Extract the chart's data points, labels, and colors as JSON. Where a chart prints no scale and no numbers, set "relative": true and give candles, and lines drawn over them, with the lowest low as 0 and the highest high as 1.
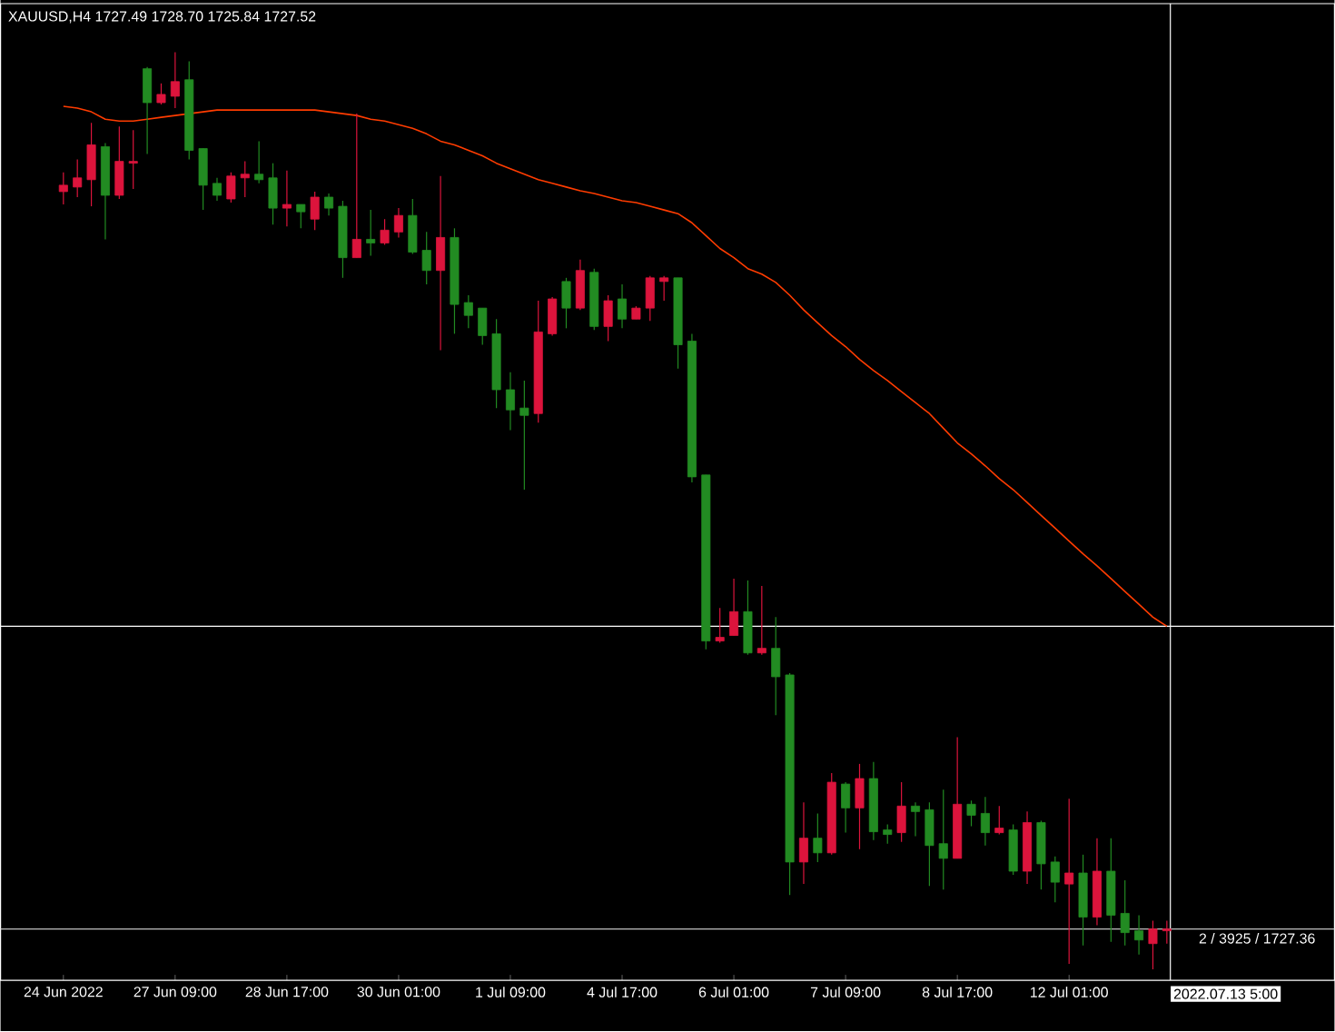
{
  "chart_data": {
    "type": "candlestick",
    "relative": true,
    "tick_labels": "x",
    "title": "XAUUSD,H4  1727.49 1728.70 1725.84 1727.52",
    "categories": [
      "24 Jun 2022",
      null,
      null,
      null,
      null,
      null,
      null,
      null,
      "27 Jun 09:00",
      null,
      null,
      null,
      null,
      null,
      null,
      null,
      "28 Jun 17:00",
      null,
      null,
      null,
      null,
      null,
      null,
      null,
      "30 Jun 01:00",
      null,
      null,
      null,
      null,
      null,
      null,
      null,
      "1 Jul 09:00",
      null,
      null,
      null,
      null,
      null,
      null,
      null,
      "4 Jul 17:00",
      null,
      null,
      null,
      null,
      null,
      null,
      null,
      "6 Jul 01:00",
      null,
      null,
      null,
      null,
      null,
      null,
      null,
      "7 Jul 09:00",
      null,
      null,
      null,
      null,
      null,
      null,
      null,
      "8 Jul 17:00",
      null,
      null,
      null,
      null,
      null,
      null,
      null,
      "12 Jul 01:00",
      null,
      null,
      null,
      null,
      null,
      null,
      null
    ],
    "ohlc": [
      [
        0.848,
        0.869,
        0.834,
        0.855
      ],
      [
        0.853,
        0.883,
        0.842,
        0.863
      ],
      [
        0.861,
        0.923,
        0.832,
        0.899
      ],
      [
        0.897,
        0.901,
        0.796,
        0.844
      ],
      [
        0.844,
        0.919,
        0.84,
        0.881
      ],
      [
        0.879,
        0.915,
        0.851,
        0.881
      ],
      [
        0.982,
        0.984,
        0.889,
        0.945
      ],
      [
        0.945,
        0.966,
        0.943,
        0.954
      ],
      [
        0.952,
        1.0,
        0.939,
        0.968
      ],
      [
        0.97,
        0.99,
        0.883,
        0.893
      ],
      [
        0.895,
        0.895,
        0.828,
        0.855
      ],
      [
        0.857,
        0.863,
        0.838,
        0.844
      ],
      [
        0.84,
        0.869,
        0.836,
        0.865
      ],
      [
        0.863,
        0.881,
        0.842,
        0.867
      ],
      [
        0.867,
        0.903,
        0.857,
        0.861
      ],
      [
        0.863,
        0.879,
        0.812,
        0.83
      ],
      [
        0.83,
        0.871,
        0.81,
        0.834
      ],
      [
        0.834,
        0.834,
        0.808,
        0.826
      ],
      [
        0.818,
        0.848,
        0.806,
        0.842
      ],
      [
        0.842,
        0.846,
        0.822,
        0.83
      ],
      [
        0.832,
        0.838,
        0.754,
        0.776
      ],
      [
        0.776,
        0.933,
        0.776,
        0.796
      ],
      [
        0.796,
        0.828,
        0.778,
        0.792
      ],
      [
        0.792,
        0.818,
        0.79,
        0.806
      ],
      [
        0.804,
        0.83,
        0.798,
        0.822
      ],
      [
        0.822,
        0.84,
        0.78,
        0.782
      ],
      [
        0.784,
        0.804,
        0.747,
        0.762
      ],
      [
        0.762,
        0.865,
        0.675,
        0.798
      ],
      [
        0.798,
        0.808,
        0.693,
        0.725
      ],
      [
        0.727,
        0.735,
        0.699,
        0.713
      ],
      [
        0.721,
        0.721,
        0.681,
        0.691
      ],
      [
        0.693,
        0.709,
        0.612,
        0.632
      ],
      [
        0.632,
        0.651,
        0.588,
        0.61
      ],
      [
        0.612,
        0.642,
        0.523,
        0.604
      ],
      [
        0.606,
        0.729,
        0.596,
        0.695
      ],
      [
        0.693,
        0.733,
        0.691,
        0.731
      ],
      [
        0.75,
        0.754,
        0.699,
        0.721
      ],
      [
        0.721,
        0.774,
        0.719,
        0.762
      ],
      [
        0.76,
        0.764,
        0.697,
        0.701
      ],
      [
        0.701,
        0.735,
        0.685,
        0.729
      ],
      [
        0.731,
        0.747,
        0.699,
        0.709
      ],
      [
        0.709,
        0.723,
        0.709,
        0.721
      ],
      [
        0.721,
        0.756,
        0.707,
        0.754
      ],
      [
        0.75,
        0.756,
        0.729,
        0.754
      ],
      [
        0.754,
        0.754,
        0.655,
        0.681
      ],
      [
        0.685,
        0.693,
        0.531,
        0.537
      ],
      [
        0.539,
        0.539,
        0.349,
        0.358
      ],
      [
        0.358,
        0.394,
        0.356,
        0.362
      ],
      [
        0.364,
        0.426,
        0.364,
        0.39
      ],
      [
        0.39,
        0.424,
        0.343,
        0.345
      ],
      [
        0.345,
        0.418,
        0.343,
        0.35
      ],
      [
        0.35,
        0.384,
        0.277,
        0.319
      ],
      [
        0.321,
        0.323,
        0.081,
        0.117
      ],
      [
        0.117,
        0.182,
        0.093,
        0.143
      ],
      [
        0.143,
        0.17,
        0.117,
        0.127
      ],
      [
        0.127,
        0.214,
        0.125,
        0.204
      ],
      [
        0.202,
        0.204,
        0.149,
        0.176
      ],
      [
        0.176,
        0.224,
        0.131,
        0.208
      ],
      [
        0.208,
        0.226,
        0.141,
        0.15
      ],
      [
        0.152,
        0.158,
        0.137,
        0.147
      ],
      [
        0.149,
        0.204,
        0.139,
        0.178
      ],
      [
        0.178,
        0.182,
        0.145,
        0.172
      ],
      [
        0.174,
        0.182,
        0.091,
        0.135
      ],
      [
        0.137,
        0.196,
        0.087,
        0.121
      ],
      [
        0.121,
        0.253,
        0.121,
        0.18
      ],
      [
        0.18,
        0.184,
        0.156,
        0.168
      ],
      [
        0.17,
        0.188,
        0.135,
        0.149
      ],
      [
        0.149,
        0.178,
        0.147,
        0.154
      ],
      [
        0.152,
        0.158,
        0.103,
        0.107
      ],
      [
        0.107,
        0.172,
        0.093,
        0.16
      ],
      [
        0.16,
        0.162,
        0.087,
        0.115
      ],
      [
        0.117,
        0.123,
        0.073,
        0.095
      ],
      [
        0.093,
        0.186,
        0.006,
        0.105
      ],
      [
        0.105,
        0.125,
        0.026,
        0.057
      ],
      [
        0.057,
        0.143,
        0.048,
        0.107
      ],
      [
        0.107,
        0.143,
        0.03,
        0.059
      ],
      [
        0.061,
        0.097,
        0.026,
        0.04
      ],
      [
        0.042,
        0.059,
        0.016,
        0.032
      ],
      [
        0.028,
        0.053,
        0.0,
        0.044
      ],
      [
        0.042,
        0.053,
        0.028,
        0.044
      ]
    ],
    "colors": [
      "#dc143c",
      "#dc143c",
      "#dc143c",
      "#228b22",
      "#dc143c",
      "#dc143c",
      "#228b22",
      "#dc143c",
      "#dc143c",
      "#228b22",
      "#228b22",
      "#228b22",
      "#dc143c",
      "#dc143c",
      "#228b22",
      "#228b22",
      "#dc143c",
      "#228b22",
      "#dc143c",
      "#228b22",
      "#228b22",
      "#dc143c",
      "#228b22",
      "#dc143c",
      "#dc143c",
      "#228b22",
      "#228b22",
      "#dc143c",
      "#228b22",
      "#228b22",
      "#228b22",
      "#228b22",
      "#228b22",
      "#228b22",
      "#dc143c",
      "#dc143c",
      "#228b22",
      "#dc143c",
      "#228b22",
      "#dc143c",
      "#228b22",
      "#dc143c",
      "#dc143c",
      "#dc143c",
      "#228b22",
      "#228b22",
      "#228b22",
      "#dc143c",
      "#dc143c",
      "#228b22",
      "#dc143c",
      "#228b22",
      "#228b22",
      "#dc143c",
      "#228b22",
      "#dc143c",
      "#228b22",
      "#dc143c",
      "#228b22",
      "#228b22",
      "#dc143c",
      "#228b22",
      "#228b22",
      "#228b22",
      "#dc143c",
      "#228b22",
      "#228b22",
      "#dc143c",
      "#228b22",
      "#dc143c",
      "#228b22",
      "#228b22",
      "#dc143c",
      "#228b22",
      "#dc143c",
      "#228b22",
      "#228b22",
      "#228b22",
      "#dc143c",
      "#dc143c"
    ],
    "series": [
      {
        "type": "line",
        "color": "#ff3c00",
        "values": [
          0.941,
          0.939,
          0.935,
          0.927,
          0.925,
          0.925,
          0.927,
          0.929,
          0.931,
          0.933,
          0.935,
          0.937,
          0.937,
          0.937,
          0.937,
          0.937,
          0.937,
          0.937,
          0.937,
          0.935,
          0.933,
          0.931,
          0.927,
          0.925,
          0.921,
          0.917,
          0.911,
          0.903,
          0.899,
          0.893,
          0.887,
          0.879,
          0.873,
          0.867,
          0.861,
          0.857,
          0.853,
          0.849,
          0.846,
          0.842,
          0.838,
          0.836,
          0.832,
          0.828,
          0.824,
          0.814,
          0.8,
          0.786,
          0.776,
          0.764,
          0.758,
          0.749,
          0.735,
          0.719,
          0.705,
          0.691,
          0.679,
          0.665,
          0.653,
          0.642,
          0.63,
          0.618,
          0.606,
          0.59,
          0.574,
          0.562,
          0.549,
          0.535,
          0.523,
          0.509,
          0.495,
          0.481,
          0.467,
          0.453,
          0.44,
          0.426,
          0.412,
          0.398,
          0.384,
          0.374
        ]
      }
    ],
    "ref_lines": [
      {
        "axis": "y",
        "value": 0.374,
        "color": "#ffffff"
      },
      {
        "axis": "y",
        "value": 0.044,
        "color": "#c0c0c0"
      }
    ],
    "annotations": [
      "2 / 3925 / 1727.36",
      "2022.07.13 5:00"
    ]
  }
}
